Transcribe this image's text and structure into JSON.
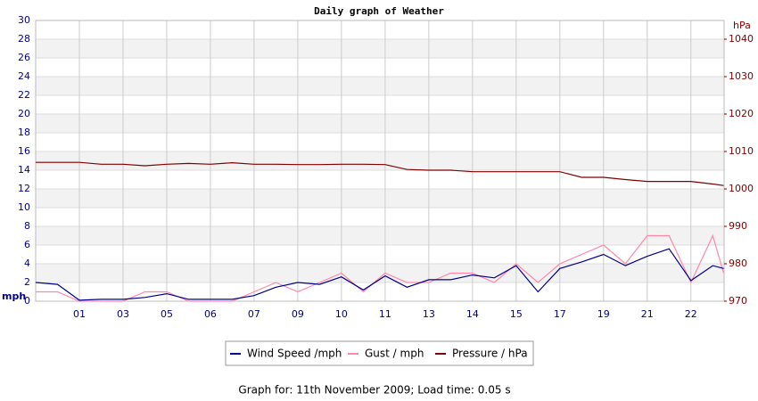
{
  "chart_data": {
    "type": "line",
    "title": "Daily graph of Weather",
    "footer": "Graph for: 11th November 2009; Load time: 0.05 s",
    "y_label": "mph",
    "y2_label": "hPa",
    "grid": true,
    "legend": "bottom",
    "x": [
      0,
      0.5,
      1,
      1.5,
      2,
      2.5,
      3,
      3.5,
      4,
      4.5,
      5,
      5.5,
      6,
      6.5,
      7,
      7.5,
      8,
      8.5,
      9,
      9.5,
      10,
      10.5,
      11,
      11.5,
      12,
      12.5,
      13,
      13.5,
      14,
      14.5,
      15,
      15.5,
      15.75
    ],
    "xlim": [
      0,
      15.76
    ],
    "xticks": [
      {
        "value": 1,
        "label": "01"
      },
      {
        "value": 2,
        "label": "03"
      },
      {
        "value": 3,
        "label": "05"
      },
      {
        "value": 4,
        "label": "06"
      },
      {
        "value": 5,
        "label": "07"
      },
      {
        "value": 6,
        "label": "09"
      },
      {
        "value": 7,
        "label": "10"
      },
      {
        "value": 8,
        "label": "11"
      },
      {
        "value": 9,
        "label": "13"
      },
      {
        "value": 10,
        "label": "14"
      },
      {
        "value": 11,
        "label": "15"
      },
      {
        "value": 12,
        "label": "17"
      },
      {
        "value": 13,
        "label": "19"
      },
      {
        "value": 14,
        "label": "21"
      },
      {
        "value": 15,
        "label": "22"
      }
    ],
    "ylim": [
      0,
      30
    ],
    "yticks": [
      0,
      2,
      4,
      6,
      8,
      10,
      12,
      14,
      16,
      18,
      20,
      22,
      24,
      26,
      28,
      30
    ],
    "y2lim": [
      970,
      1045
    ],
    "y2ticks": [
      970,
      980,
      990,
      1000,
      1010,
      1020,
      1030,
      1040
    ],
    "series": [
      {
        "name": "Wind Speed /mph",
        "color": "#00008b",
        "values": [
          2.0,
          1.8,
          0.1,
          0.2,
          0.2,
          0.4,
          0.8,
          0.2,
          0.2,
          0.2,
          0.6,
          1.5,
          2.0,
          1.8,
          2.6,
          1.2,
          2.7,
          1.5,
          2.3,
          2.3,
          2.8,
          2.5,
          3.8,
          1.0,
          3.5,
          4.2,
          5.0,
          3.8,
          4.8,
          5.6,
          2.2,
          3.8,
          3.5
        ]
      },
      {
        "name": "Gust / mph",
        "color": "#ff88aa",
        "values": [
          1.0,
          1.0,
          0,
          0,
          0,
          1.0,
          1.0,
          0,
          0,
          0,
          1.0,
          2.0,
          1.0,
          2.0,
          3.0,
          1.0,
          3.0,
          2.0,
          2.0,
          3.0,
          3.0,
          2.0,
          4.0,
          2.0,
          4.0,
          5.0,
          6.0,
          4.0,
          7.0,
          7.0,
          2.0,
          7.0,
          3.0
        ]
      },
      {
        "name": "Pressure / hPa",
        "color": "#800000",
        "axis": "y2",
        "values": [
          1007.1,
          1007.1,
          1007.1,
          1006.6,
          1006.6,
          1006.2,
          1006.6,
          1006.8,
          1006.6,
          1007.0,
          1006.6,
          1006.6,
          1006.5,
          1006.5,
          1006.6,
          1006.6,
          1006.5,
          1005.2,
          1005.0,
          1005.0,
          1004.6,
          1004.6,
          1004.6,
          1004.6,
          1004.6,
          1003.1,
          1003.1,
          1002.5,
          1002.0,
          1002.0,
          1002.0,
          1001.3,
          1000.9
        ]
      }
    ]
  }
}
